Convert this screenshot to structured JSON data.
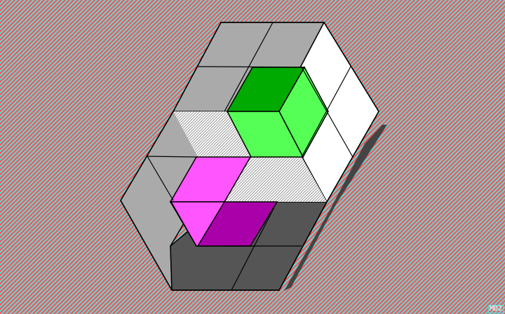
{
  "scene": {
    "background": "#ff5555",
    "dither": "#55dddd",
    "hatch": "#bbbbbb",
    "panel_left": "#aaaaaa",
    "panel_top": "#aaaaaa",
    "panel_bottom": "#555555",
    "panel_right": "#ffffff",
    "shadow": "#444444",
    "green_light": "#55ff55",
    "green_dark": "#00aa00",
    "magenta_light": "#ff55ff",
    "magenta_dark": "#aa00aa",
    "outline": "#000000"
  },
  "corner_label": "MD2"
}
